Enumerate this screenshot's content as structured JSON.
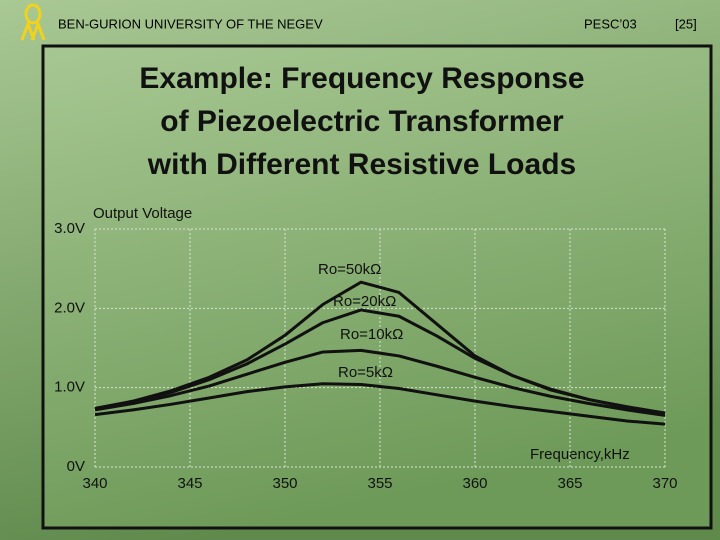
{
  "header": {
    "university": "BEN-GURION UNIVERSITY OF THE NEGEV",
    "conference": "PESC’03",
    "page": "[25]"
  },
  "chart_data": {
    "type": "line",
    "title": [
      "Example: Frequency Response",
      "of Piezoelectric Transformer",
      "with Different Resistive Loads"
    ],
    "y_label": "Output Voltage",
    "x_label": "Frequency,kHz",
    "x": [
      340,
      342,
      344,
      346,
      348,
      350,
      352,
      354,
      356,
      358,
      360,
      362,
      364,
      366,
      368,
      370
    ],
    "series": [
      {
        "name": "Ro=50kΩ",
        "color": "#111111",
        "values": [
          0.74,
          0.83,
          0.96,
          1.13,
          1.35,
          1.66,
          2.05,
          2.33,
          2.2,
          1.8,
          1.4,
          1.15,
          0.97,
          0.85,
          0.75,
          0.68
        ]
      },
      {
        "name": "Ro=20kΩ",
        "color": "#111111",
        "values": [
          0.73,
          0.82,
          0.94,
          1.1,
          1.3,
          1.55,
          1.82,
          1.98,
          1.9,
          1.65,
          1.37,
          1.15,
          0.98,
          0.85,
          0.76,
          0.68
        ]
      },
      {
        "name": "Ro=10kΩ",
        "color": "#111111",
        "values": [
          0.72,
          0.8,
          0.9,
          1.02,
          1.17,
          1.32,
          1.45,
          1.47,
          1.4,
          1.27,
          1.13,
          1.0,
          0.89,
          0.8,
          0.72,
          0.65
        ]
      },
      {
        "name": "Ro=5kΩ",
        "color": "#111111",
        "values": [
          0.66,
          0.72,
          0.79,
          0.87,
          0.95,
          1.01,
          1.05,
          1.04,
          0.99,
          0.91,
          0.83,
          0.76,
          0.7,
          0.64,
          0.58,
          0.54
        ]
      }
    ],
    "xlim": [
      340,
      370
    ],
    "xticks": [
      340,
      345,
      350,
      355,
      360,
      365,
      370
    ],
    "ylim": [
      0,
      3
    ],
    "yticks": [
      {
        "value": 0,
        "label": "0V"
      },
      {
        "value": 1,
        "label": "1.0V"
      },
      {
        "value": 2,
        "label": "2.0V"
      },
      {
        "value": 3,
        "label": "3.0V"
      }
    ],
    "grid": true
  }
}
